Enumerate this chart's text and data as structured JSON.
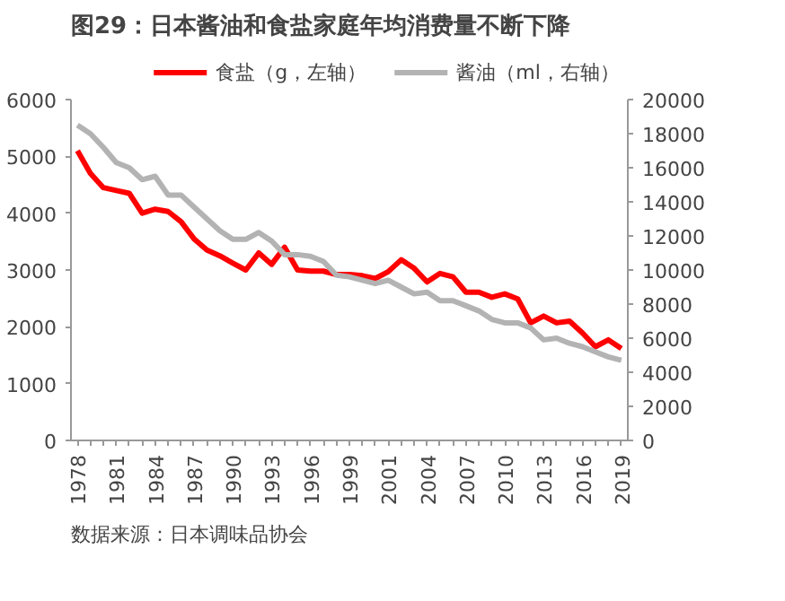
{
  "chart_data": {
    "type": "line",
    "title": "图29：日本酱油和食盐家庭年均消费量不断下降",
    "categories": [
      "1978",
      null,
      null,
      "1981",
      null,
      null,
      "1984",
      null,
      null,
      "1987",
      null,
      null,
      "1990",
      null,
      null,
      "1993",
      null,
      null,
      "1996",
      null,
      null,
      "1999",
      null,
      null,
      "2001",
      null,
      null,
      "2004",
      null,
      null,
      "2007",
      null,
      null,
      "2010",
      null,
      null,
      "2013",
      null,
      null,
      "2016",
      null,
      null,
      "2019"
    ],
    "series": [
      {
        "name": "食盐（g，左轴）",
        "color": "#ff0000",
        "values": [
          5100,
          4700,
          4450,
          4400,
          4350,
          4000,
          4070,
          4030,
          3850,
          3550,
          3350,
          3250,
          3120,
          3000,
          3300,
          3100,
          3400,
          3000,
          2980,
          2980,
          2920,
          2920,
          2900,
          2850,
          2970,
          3180,
          3030,
          2790,
          2940,
          2880,
          2610,
          2610,
          2520,
          2580,
          2490,
          2070,
          2190,
          2070,
          2100,
          1890,
          1650,
          1770,
          1620
        ]
      },
      {
        "name": "酱油（ml，右轴）",
        "color": "#b3b3b3",
        "axis": "y2",
        "values": [
          18500,
          18000,
          17200,
          16300,
          16000,
          15300,
          15500,
          14400,
          14400,
          13700,
          13000,
          12300,
          11800,
          11800,
          12200,
          11700,
          10900,
          10900,
          10800,
          10500,
          9700,
          9600,
          9400,
          9200,
          9400,
          9000,
          8600,
          8700,
          8200,
          8200,
          7900,
          7600,
          7100,
          6900,
          6900,
          6600,
          5900,
          6000,
          5700,
          5500,
          5200,
          4900,
          4700
        ]
      }
    ],
    "ylim": [
      0,
      6000
    ],
    "yticks": [
      0,
      1000,
      2000,
      3000,
      4000,
      5000,
      6000
    ],
    "y2lim": [
      0,
      20000
    ],
    "y2ticks": [
      0,
      2000,
      4000,
      6000,
      8000,
      10000,
      12000,
      14000,
      16000,
      18000,
      20000
    ],
    "legend": "top",
    "grid": false,
    "annotations": [
      "数据来源：日本调味品协会"
    ]
  }
}
